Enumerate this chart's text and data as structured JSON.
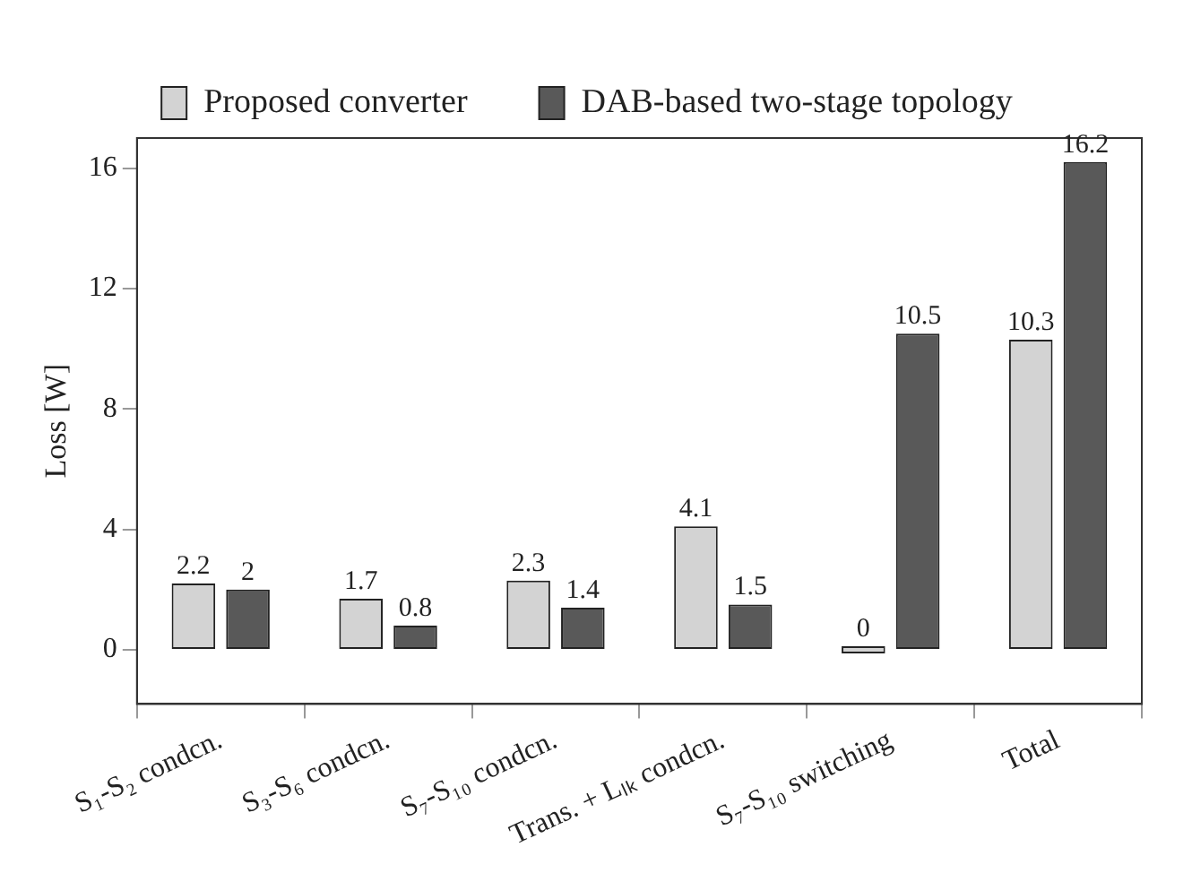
{
  "chart_data": {
    "type": "bar",
    "ylabel": "Loss [W]",
    "categories": [
      "S₁-S₂ condcn.",
      "S₃-S₆ condcn.",
      "S₇-S₁₀ condcn.",
      "Trans. + Lₗₖ condcn.",
      "S₇-S₁₀ switching",
      "Total"
    ],
    "series": [
      {
        "name": "Proposed converter",
        "color": "#d3d3d3",
        "values": [
          2.2,
          1.7,
          2.3,
          4.1,
          0,
          10.3
        ]
      },
      {
        "name": "DAB-based two-stage topology",
        "color": "#595959",
        "values": [
          2,
          0.8,
          1.4,
          1.5,
          10.5,
          16.2
        ]
      }
    ],
    "ylim": [
      -1.8,
      17
    ],
    "yticks": [
      0,
      4,
      8,
      12,
      16
    ],
    "grid": false,
    "legend": "top",
    "data_labels": true
  }
}
